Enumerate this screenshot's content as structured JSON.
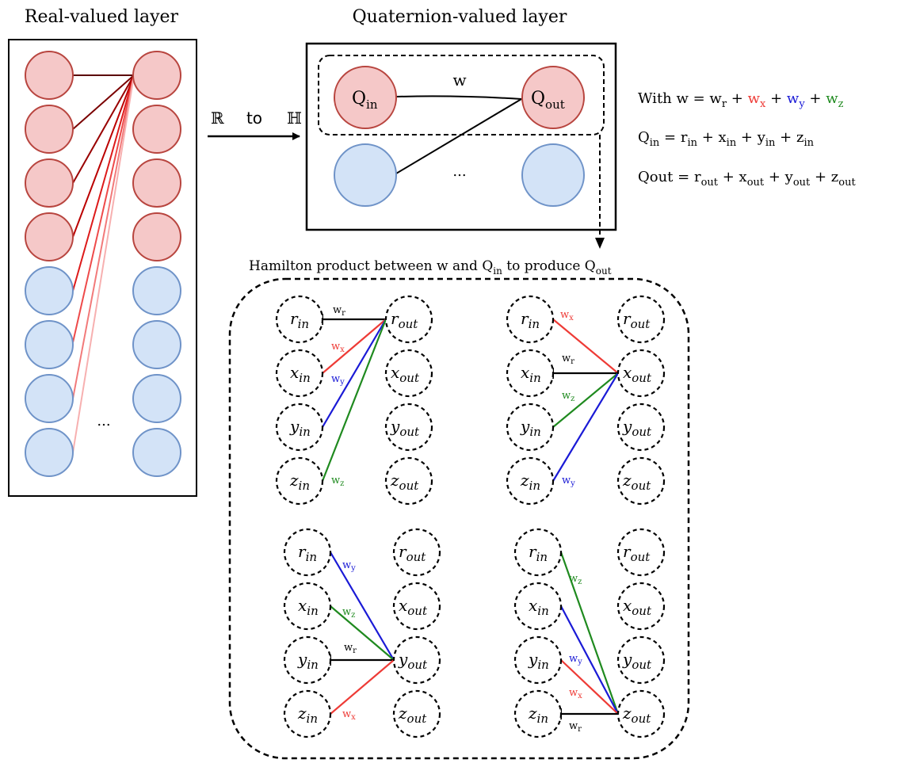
{
  "titles": {
    "real_layer": "Real-valued layer",
    "quaternion_layer": "Quaternion-valued layer",
    "hamilton": "Hamilton product between w and Q",
    "hamilton_sub": "in",
    "hamilton_mid": "to produce Q",
    "hamilton_sub2": "out"
  },
  "arrow_labels": {
    "from": "ℝ",
    "to_word": "to",
    "to": "ℍ"
  },
  "quat_layer": {
    "q_in": "Q",
    "q_in_sub": "in",
    "q_out": "Q",
    "q_out_sub": "out",
    "w": "w",
    "ellipsis": "..."
  },
  "real_layer": {
    "ellipsis": "..."
  },
  "equations": {
    "eq1": {
      "prefix": "With w = w",
      "r": "r",
      "plus1": " + ",
      "wx": "w",
      "x": "x",
      "plus2": " + ",
      "wy": "w",
      "y": "y",
      "plus3": " +  ",
      "wz": "w",
      "z": "z"
    },
    "eq2": {
      "text": "Q",
      "sub": "in",
      "rest": " = r",
      "s1": "in",
      "p1": " + x",
      "s2": "in",
      "p2": " + y",
      "s3": "in",
      "p3": " + z",
      "s4": "in"
    },
    "eq3": {
      "text": "Qout = r",
      "s1": "out",
      "p1": " + x",
      "s2": "out",
      "p2": " + y",
      "s3": "out",
      "p3": " + z",
      "s4": "out"
    }
  },
  "hamilton_nodes": {
    "in": [
      {
        "b": "r",
        "s": "in"
      },
      {
        "b": "x",
        "s": "in"
      },
      {
        "b": "y",
        "s": "in"
      },
      {
        "b": "z",
        "s": "in"
      }
    ],
    "out": [
      {
        "b": "r",
        "s": "out"
      },
      {
        "b": "x",
        "s": "out"
      },
      {
        "b": "y",
        "s": "out"
      },
      {
        "b": "z",
        "s": "out"
      }
    ]
  },
  "weight_labels": {
    "wr": {
      "b": "w",
      "s": "r"
    },
    "wx": {
      "b": "w",
      "s": "x"
    },
    "wy": {
      "b": "w",
      "s": "y"
    },
    "wz": {
      "b": "w",
      "s": "z"
    }
  },
  "colors": {
    "black": "#000000",
    "red": "#ee3b36",
    "blue": "#1a1ad6",
    "green": "#1f8a1f",
    "red_fill": "#f5c8c8",
    "red_stroke": "#b8453f",
    "blue_fill": "#d3e3f7",
    "blue_stroke": "#6f93c8",
    "dark_red": "#7a0000"
  }
}
